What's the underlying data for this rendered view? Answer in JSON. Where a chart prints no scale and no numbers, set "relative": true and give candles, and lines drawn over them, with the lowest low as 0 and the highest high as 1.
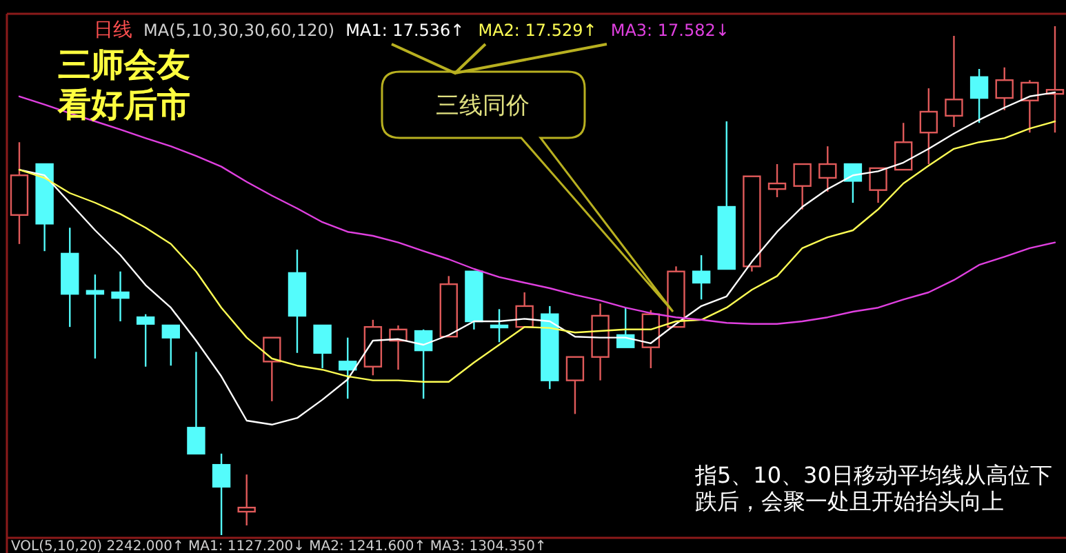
{
  "chart_data": {
    "type": "candlestick",
    "relative": true,
    "legend": "top",
    "grid": false,
    "categories": [
      null,
      null,
      null,
      null,
      null,
      null,
      null,
      null,
      null,
      null,
      null,
      null,
      null,
      null,
      null,
      null,
      null,
      null,
      null,
      null,
      null,
      null,
      null,
      null,
      null,
      null,
      null,
      null,
      null,
      null,
      null,
      null,
      null,
      null,
      null,
      null,
      null,
      null,
      null,
      null,
      null,
      null
    ],
    "ohlc": [
      [
        0.629,
        0.772,
        0.572,
        0.707
      ],
      [
        0.729,
        0.729,
        0.558,
        0.612
      ],
      [
        0.553,
        0.604,
        0.409,
        0.474
      ],
      [
        0.48,
        0.512,
        0.347,
        0.474
      ],
      [
        0.477,
        0.518,
        0.42,
        0.466
      ],
      [
        0.428,
        0.434,
        0.331,
        0.415
      ],
      [
        0.412,
        0.412,
        0.333,
        0.388
      ],
      [
        0.211,
        0.36,
        0.16,
        0.16
      ],
      [
        0.138,
        0.16,
        0,
        0.095
      ],
      [
        0.046,
        0.119,
        0.019,
        0.054
      ],
      [
        0.341,
        0.388,
        0.263,
        0.388
      ],
      [
        0.515,
        0.561,
        0.358,
        0.431
      ],
      [
        0.412,
        0.412,
        0.328,
        0.358
      ],
      [
        0.341,
        0.388,
        0.268,
        0.325
      ],
      [
        0.331,
        0.423,
        0.314,
        0.409
      ],
      [
        0.382,
        0.412,
        0.325,
        0.404
      ],
      [
        0.401,
        0.404,
        0.268,
        0.363
      ],
      [
        0.39,
        0.509,
        0.39,
        0.493
      ],
      [
        0.518,
        0.518,
        0.404,
        0.42
      ],
      [
        0.412,
        0.444,
        0.379,
        0.409
      ],
      [
        0.409,
        0.477,
        0.409,
        0.45
      ],
      [
        0.434,
        0.45,
        0.287,
        0.304
      ],
      [
        0.304,
        0.35,
        0.238,
        0.35
      ],
      [
        0.35,
        0.455,
        0.304,
        0.431
      ],
      [
        0.393,
        0.447,
        0.369,
        0.369
      ],
      [
        0.369,
        0.442,
        0.328,
        0.434
      ],
      [
        0.409,
        0.528,
        0.409,
        0.518
      ],
      [
        0.518,
        0.55,
        0.463,
        0.496
      ],
      [
        0.645,
        0.813,
        0.523,
        0.523
      ],
      [
        0.528,
        0.705,
        0.518,
        0.705
      ],
      [
        0.68,
        0.729,
        0.664,
        0.691
      ],
      [
        0.686,
        0.729,
        0.64,
        0.729
      ],
      [
        0.702,
        0.764,
        0.675,
        0.729
      ],
      [
        0.729,
        0.729,
        0.653,
        0.696
      ],
      [
        0.678,
        0.721,
        0.653,
        0.721
      ],
      [
        0.718,
        0.81,
        0.718,
        0.772
      ],
      [
        0.791,
        0.878,
        0.729,
        0.832
      ],
      [
        0.824,
        0.981,
        0.802,
        0.856
      ],
      [
        0.9,
        0.916,
        0.81,
        0.859
      ],
      [
        0.859,
        0.919,
        0.835,
        0.894
      ],
      [
        0.854,
        0.894,
        0.791,
        0.889
      ],
      [
        0.867,
        1,
        0.791,
        0.875
      ]
    ],
    "series": [
      {
        "type": "line",
        "name": "MA1: 17.536↑",
        "color": "#ffffff",
        "values": [
          0.718,
          0.707,
          0.653,
          0.599,
          0.55,
          0.491,
          0.447,
          0.382,
          0.312,
          0.225,
          0.217,
          0.23,
          0.266,
          0.306,
          0.382,
          0.385,
          0.374,
          0.393,
          0.42,
          0.42,
          0.425,
          0.42,
          0.39,
          0.388,
          0.388,
          0.377,
          0.415,
          0.45,
          0.469,
          0.537,
          0.596,
          0.645,
          0.68,
          0.707,
          0.715,
          0.732,
          0.759,
          0.789,
          0.816,
          0.84,
          0.862,
          0.87
        ]
      },
      {
        "type": "line",
        "name": "MA2: 17.529↑",
        "color": "#ffff54",
        "values": [
          0.718,
          0.702,
          0.672,
          0.653,
          0.631,
          0.604,
          0.572,
          0.518,
          0.447,
          0.388,
          0.347,
          0.333,
          0.325,
          0.312,
          0.304,
          0.304,
          0.301,
          0.301,
          0.339,
          0.374,
          0.409,
          0.407,
          0.398,
          0.401,
          0.404,
          0.404,
          0.42,
          0.423,
          0.447,
          0.482,
          0.509,
          0.564,
          0.585,
          0.599,
          0.64,
          0.691,
          0.726,
          0.759,
          0.772,
          0.78,
          0.799,
          0.813
        ]
      },
      {
        "type": "line",
        "name": "MA3: 17.582↓",
        "color": "#e040e0",
        "values": [
          0.862,
          0.846,
          0.829,
          0.813,
          0.797,
          0.78,
          0.764,
          0.745,
          0.724,
          0.694,
          0.667,
          0.642,
          0.615,
          0.596,
          0.588,
          0.575,
          0.558,
          0.542,
          0.523,
          0.507,
          0.496,
          0.485,
          0.472,
          0.461,
          0.447,
          0.436,
          0.428,
          0.423,
          0.417,
          0.415,
          0.415,
          0.42,
          0.428,
          0.439,
          0.447,
          0.463,
          0.477,
          0.501,
          0.531,
          0.547,
          0.564,
          0.575
        ]
      }
    ],
    "annotations": [
      "日线",
      "MA(5,10,30,30,60,120)",
      "三师会友",
      "看好后市",
      "三线同价",
      "指5、10、30日移动平均线从高位下跌后，会聚一处且开始抬头向上",
      "VOL(5,10,20) 2242.000↑ MA1: 1127.200↓ MA2: 1241.600↑ MA3: 1304.350↑"
    ]
  }
}
